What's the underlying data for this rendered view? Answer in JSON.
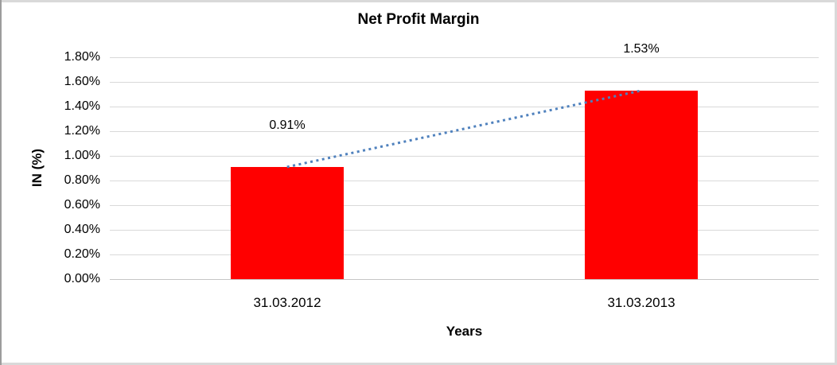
{
  "window": {
    "background": "#ffffff",
    "frame_color_light": "#d9d9d9",
    "frame_color_dark": "#9c9c9c"
  },
  "chart_data": {
    "type": "bar",
    "title": "Net Profit Margin",
    "xlabel": "Years",
    "ylabel": "IN (%)",
    "categories": [
      "31.03.2012",
      "31.03.2013"
    ],
    "values": [
      0.91,
      1.53
    ],
    "data_labels": [
      "0.91%",
      "1.53%"
    ],
    "ylim": [
      0,
      1.8
    ],
    "ytick_step": 0.2,
    "ytick_labels": [
      "0.00%",
      "0.20%",
      "0.40%",
      "0.60%",
      "0.80%",
      "1.00%",
      "1.20%",
      "1.40%",
      "1.60%",
      "1.80%"
    ],
    "bar_color": "#ff0000",
    "gridline_color": "#d9d9d9",
    "axisline_color": "#c6c6c6",
    "trendline": {
      "color": "#4f81bd",
      "style": "dotted",
      "connects": [
        "31.03.2012",
        "31.03.2013"
      ]
    },
    "legend": "none",
    "grid": "horizontal"
  }
}
